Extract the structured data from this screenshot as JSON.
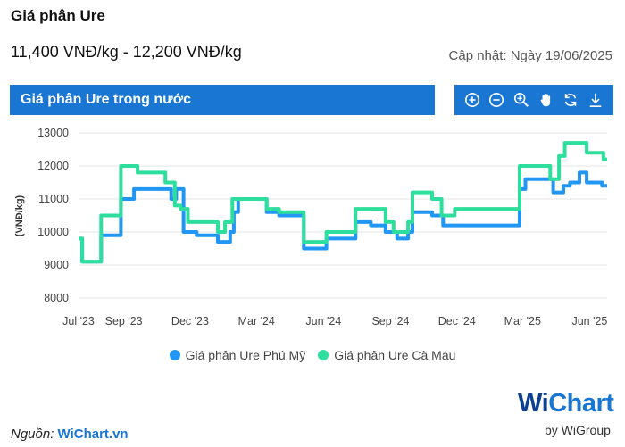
{
  "header": {
    "title": "Giá phân Ure",
    "price_range": "11,400 VNĐ/kg - 12,200 VNĐ/kg",
    "updated": "Cập nhật: Ngày 19/06/2025"
  },
  "panel": {
    "title": "Giá phân Ure trong nước"
  },
  "toolbar": {
    "icons": [
      "zoom-in-icon",
      "zoom-out-icon",
      "magnifier-icon",
      "pan-hand-icon",
      "reset-icon",
      "download-icon"
    ]
  },
  "legend": {
    "phu_my": "Giá phân Ure Phú Mỹ",
    "ca_mau": "Giá phân Ure Cà Mau"
  },
  "source": {
    "label": "Nguồn:",
    "link": "WiChart.vn"
  },
  "logo": {
    "main_w": "Wi",
    "main_rest": "Chart",
    "sub": "by WiGroup"
  },
  "colors": {
    "phu_my": "#2196f3",
    "ca_mau": "#2ede9c",
    "accent": "#1976d2"
  },
  "chart_data": {
    "type": "line",
    "ylabel": "(VNĐ/kg)",
    "xlabel": "",
    "ylim": [
      8000,
      13000
    ],
    "yticks": [
      8000,
      9000,
      10000,
      11000,
      12000,
      13000
    ],
    "xlim": [
      "2023-07-01",
      "2025-06-25"
    ],
    "xticks": [
      {
        "label": "Jul '23",
        "date": "2023-07-01"
      },
      {
        "label": "Sep '23",
        "date": "2023-09-01"
      },
      {
        "label": "Dec '23",
        "date": "2023-12-01"
      },
      {
        "label": "Mar '24",
        "date": "2024-03-01"
      },
      {
        "label": "Jun '24",
        "date": "2024-06-01"
      },
      {
        "label": "Sep '24",
        "date": "2024-09-01"
      },
      {
        "label": "Dec '24",
        "date": "2024-12-01"
      },
      {
        "label": "Mar '25",
        "date": "2025-03-01"
      },
      {
        "label": "Jun '25",
        "date": "2025-06-01"
      }
    ],
    "grid": true,
    "series": [
      {
        "name": "Giá phân Ure Phú Mỹ",
        "points": [
          [
            "2023-07-01",
            9800
          ],
          [
            "2023-07-06",
            9800
          ],
          [
            "2023-07-06",
            9100
          ],
          [
            "2023-08-01",
            9100
          ],
          [
            "2023-08-01",
            9900
          ],
          [
            "2023-08-28",
            9900
          ],
          [
            "2023-08-28",
            11000
          ],
          [
            "2023-09-15",
            11000
          ],
          [
            "2023-09-15",
            11300
          ],
          [
            "2023-11-05",
            11300
          ],
          [
            "2023-11-05",
            11000
          ],
          [
            "2023-11-12",
            11000
          ],
          [
            "2023-11-12",
            11300
          ],
          [
            "2023-11-22",
            11300
          ],
          [
            "2023-11-22",
            10000
          ],
          [
            "2023-12-10",
            10000
          ],
          [
            "2023-12-10",
            9900
          ],
          [
            "2024-01-08",
            9900
          ],
          [
            "2024-01-08",
            9700
          ],
          [
            "2024-01-25",
            9700
          ],
          [
            "2024-01-25",
            10000
          ],
          [
            "2024-01-30",
            10000
          ],
          [
            "2024-01-30",
            10600
          ],
          [
            "2024-02-05",
            10600
          ],
          [
            "2024-02-05",
            11000
          ],
          [
            "2024-03-15",
            11000
          ],
          [
            "2024-03-15",
            10600
          ],
          [
            "2024-04-01",
            10600
          ],
          [
            "2024-04-01",
            10500
          ],
          [
            "2024-05-05",
            10500
          ],
          [
            "2024-05-05",
            9500
          ],
          [
            "2024-06-05",
            9500
          ],
          [
            "2024-06-05",
            9800
          ],
          [
            "2024-07-15",
            9800
          ],
          [
            "2024-07-15",
            10300
          ],
          [
            "2024-08-05",
            10300
          ],
          [
            "2024-08-05",
            10200
          ],
          [
            "2024-08-25",
            10200
          ],
          [
            "2024-08-25",
            10000
          ],
          [
            "2024-09-10",
            10000
          ],
          [
            "2024-09-10",
            9800
          ],
          [
            "2024-09-25",
            9800
          ],
          [
            "2024-09-25",
            10000
          ],
          [
            "2024-10-01",
            10000
          ],
          [
            "2024-10-01",
            10600
          ],
          [
            "2024-10-28",
            10600
          ],
          [
            "2024-10-28",
            10500
          ],
          [
            "2024-11-12",
            10500
          ],
          [
            "2024-11-12",
            10200
          ],
          [
            "2025-02-25",
            10200
          ],
          [
            "2025-02-25",
            11300
          ],
          [
            "2025-03-05",
            11300
          ],
          [
            "2025-03-05",
            11600
          ],
          [
            "2025-04-12",
            11600
          ],
          [
            "2025-04-12",
            11200
          ],
          [
            "2025-04-26",
            11200
          ],
          [
            "2025-04-26",
            11400
          ],
          [
            "2025-05-05",
            11400
          ],
          [
            "2025-05-05",
            11500
          ],
          [
            "2025-05-18",
            11500
          ],
          [
            "2025-05-18",
            11800
          ],
          [
            "2025-05-28",
            11800
          ],
          [
            "2025-05-28",
            11500
          ],
          [
            "2025-06-18",
            11500
          ],
          [
            "2025-06-18",
            11400
          ],
          [
            "2025-06-25",
            11400
          ]
        ]
      },
      {
        "name": "Giá phân Ure Cà Mau",
        "points": [
          [
            "2023-07-01",
            9800
          ],
          [
            "2023-07-06",
            9800
          ],
          [
            "2023-07-06",
            9100
          ],
          [
            "2023-08-01",
            9100
          ],
          [
            "2023-08-01",
            10500
          ],
          [
            "2023-08-28",
            10500
          ],
          [
            "2023-08-28",
            12000
          ],
          [
            "2023-09-20",
            12000
          ],
          [
            "2023-09-20",
            11800
          ],
          [
            "2023-10-28",
            11800
          ],
          [
            "2023-10-28",
            11500
          ],
          [
            "2023-11-10",
            11500
          ],
          [
            "2023-11-10",
            10800
          ],
          [
            "2023-11-18",
            10800
          ],
          [
            "2023-11-18",
            10700
          ],
          [
            "2023-11-28",
            10700
          ],
          [
            "2023-11-28",
            10300
          ],
          [
            "2024-01-08",
            10300
          ],
          [
            "2024-01-08",
            10000
          ],
          [
            "2024-01-18",
            10000
          ],
          [
            "2024-01-18",
            10300
          ],
          [
            "2024-01-28",
            10300
          ],
          [
            "2024-01-28",
            11000
          ],
          [
            "2024-03-15",
            11000
          ],
          [
            "2024-03-15",
            10700
          ],
          [
            "2024-04-01",
            10700
          ],
          [
            "2024-04-01",
            10600
          ],
          [
            "2024-05-05",
            10600
          ],
          [
            "2024-05-05",
            9700
          ],
          [
            "2024-06-05",
            9700
          ],
          [
            "2024-06-05",
            10000
          ],
          [
            "2024-07-15",
            10000
          ],
          [
            "2024-07-15",
            10700
          ],
          [
            "2024-08-25",
            10700
          ],
          [
            "2024-08-25",
            10300
          ],
          [
            "2024-09-05",
            10300
          ],
          [
            "2024-09-05",
            10000
          ],
          [
            "2024-09-25",
            10000
          ],
          [
            "2024-09-25",
            10300
          ],
          [
            "2024-10-01",
            10300
          ],
          [
            "2024-10-01",
            11200
          ],
          [
            "2024-10-28",
            11200
          ],
          [
            "2024-10-28",
            11000
          ],
          [
            "2024-11-10",
            11000
          ],
          [
            "2024-11-10",
            10500
          ],
          [
            "2024-11-28",
            10500
          ],
          [
            "2024-11-28",
            10700
          ],
          [
            "2025-02-25",
            10700
          ],
          [
            "2025-02-25",
            12000
          ],
          [
            "2025-04-08",
            12000
          ],
          [
            "2025-04-08",
            11600
          ],
          [
            "2025-04-20",
            11600
          ],
          [
            "2025-04-20",
            12300
          ],
          [
            "2025-04-28",
            12300
          ],
          [
            "2025-04-28",
            12700
          ],
          [
            "2025-05-28",
            12700
          ],
          [
            "2025-05-28",
            12400
          ],
          [
            "2025-06-20",
            12400
          ],
          [
            "2025-06-20",
            12200
          ],
          [
            "2025-06-25",
            12200
          ]
        ]
      }
    ]
  }
}
